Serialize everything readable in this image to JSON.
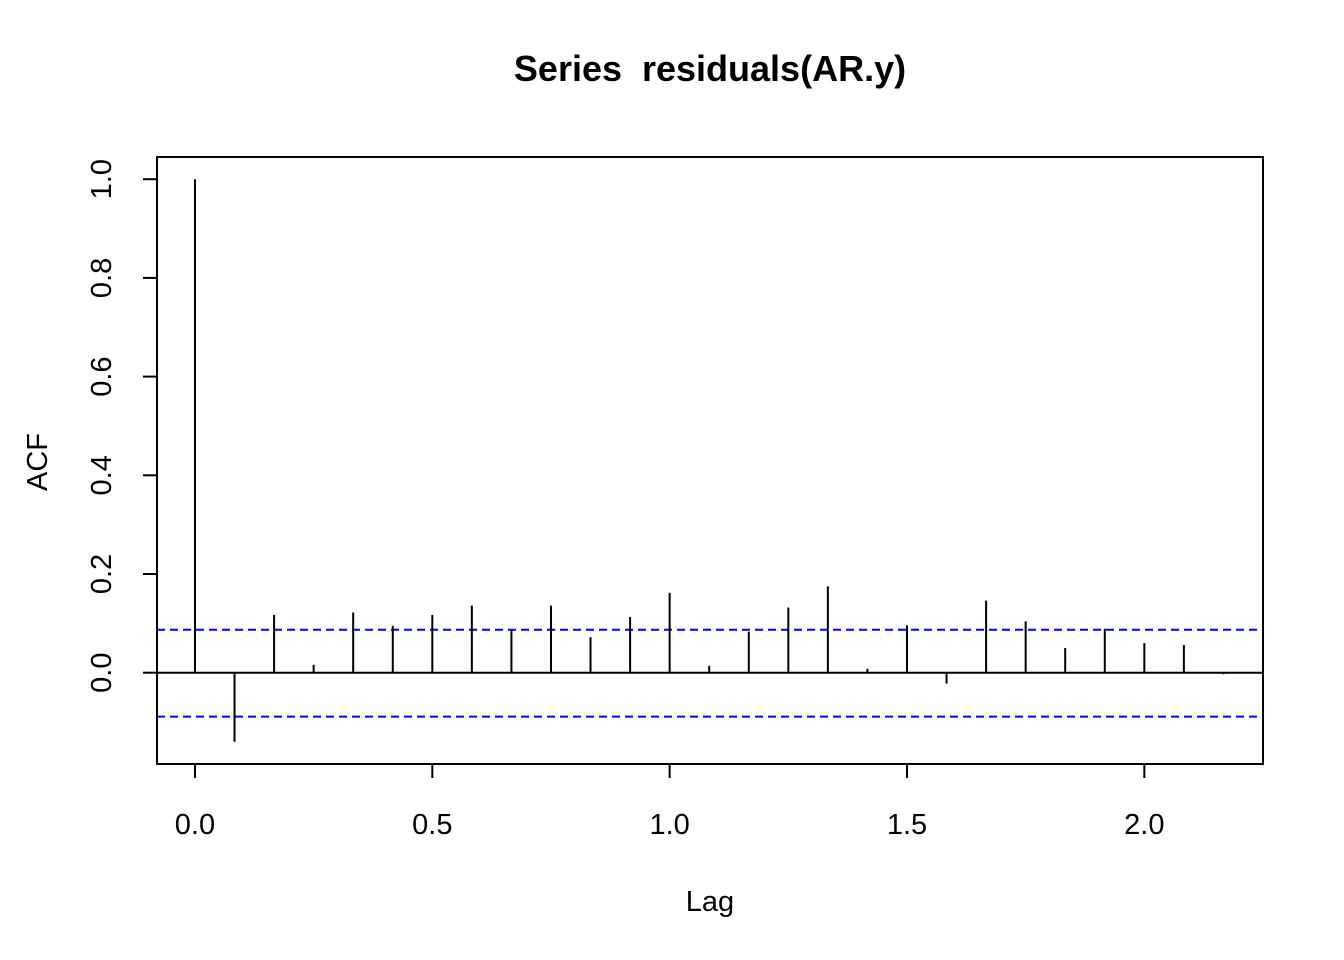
{
  "chart_data": {
    "type": "bar",
    "subtype": "acf-spike",
    "title": "Series  residuals(AR.y)",
    "xlabel": "Lag",
    "ylabel": "ACF",
    "xlim": [
      -0.08,
      2.25
    ],
    "ylim": [
      -0.185,
      1.045
    ],
    "x_ticks": [
      0.0,
      0.5,
      1.0,
      1.5,
      2.0
    ],
    "x_tick_labels": [
      "0.0",
      "0.5",
      "1.0",
      "1.5",
      "2.0"
    ],
    "y_ticks": [
      0.0,
      0.2,
      0.4,
      0.6,
      0.8,
      1.0
    ],
    "y_tick_labels": [
      "0.0",
      "0.2",
      "0.4",
      "0.6",
      "0.8",
      "1.0"
    ],
    "ci": [
      0.087,
      -0.089
    ],
    "ci_color": "#0000ff",
    "spike_color": "#000000",
    "zero_line": true,
    "grid": false,
    "x": [
      0.0,
      0.0833,
      0.1667,
      0.25,
      0.3333,
      0.4167,
      0.5,
      0.5833,
      0.6667,
      0.75,
      0.8333,
      0.9167,
      1.0,
      1.0833,
      1.1667,
      1.25,
      1.3333,
      1.4167,
      1.5,
      1.5833,
      1.6667,
      1.75,
      1.8333,
      1.9167,
      2.0,
      2.0833,
      2.1667
    ],
    "values": [
      1.0,
      -0.14,
      0.117,
      0.016,
      0.122,
      0.095,
      0.117,
      0.136,
      0.086,
      0.136,
      0.072,
      0.113,
      0.162,
      0.014,
      0.083,
      0.132,
      0.175,
      0.008,
      0.096,
      -0.022,
      0.146,
      0.104,
      0.05,
      0.089,
      0.06,
      0.056,
      -0.003
    ]
  }
}
